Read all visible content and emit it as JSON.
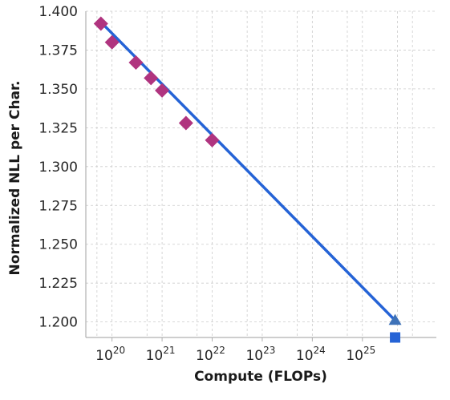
{
  "chart_data": {
    "type": "scatter",
    "xlabel": "Compute (FLOPs)",
    "ylabel": "Normalized NLL per Char.",
    "x_scale": "log",
    "xlim": [
      3e+19,
      3e+26
    ],
    "ylim": [
      1.19,
      1.4
    ],
    "grid": true,
    "y_ticks": [
      "1.200",
      "1.225",
      "1.250",
      "1.275",
      "1.300",
      "1.325",
      "1.350",
      "1.375",
      "1.400"
    ],
    "x_ticks": [
      {
        "base": "10",
        "exp": "20"
      },
      {
        "base": "10",
        "exp": "21"
      },
      {
        "base": "10",
        "exp": "22"
      },
      {
        "base": "10",
        "exp": "23"
      },
      {
        "base": "10",
        "exp": "24"
      },
      {
        "base": "10",
        "exp": "25"
      }
    ],
    "fit_line": {
      "color": "#2563d6",
      "x": [
        6e+19,
        4.5e+25
      ],
      "y": [
        1.393,
        1.201
      ]
    },
    "series": [
      {
        "marker": "diamond",
        "color": "#b0347f",
        "points": [
          {
            "x": 6e+19,
            "y": 1.392
          },
          {
            "x": 1e+20,
            "y": 1.38
          },
          {
            "x": 3e+20,
            "y": 1.367
          },
          {
            "x": 6e+20,
            "y": 1.357
          },
          {
            "x": 1e+21,
            "y": 1.349
          },
          {
            "x": 3e+21,
            "y": 1.328
          },
          {
            "x": 1e+22,
            "y": 1.317
          }
        ]
      },
      {
        "marker": "triangle",
        "color": "#3e72b8",
        "points": [
          {
            "x": 4.5e+25,
            "y": 1.201
          }
        ]
      },
      {
        "marker": "square",
        "color": "#2563d6",
        "points": [
          {
            "x": 4.5e+25,
            "y": 1.19
          }
        ]
      }
    ]
  }
}
